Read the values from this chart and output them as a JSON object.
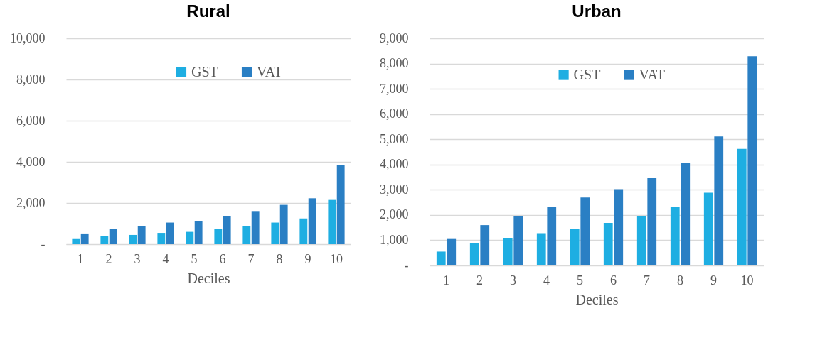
{
  "chart_data": [
    {
      "type": "bar",
      "title": "Rural",
      "xlabel": "Deciles",
      "categories": [
        "1",
        "2",
        "3",
        "4",
        "5",
        "6",
        "7",
        "8",
        "9",
        "10"
      ],
      "series": [
        {
          "name": "GST",
          "color": "#1eaee2",
          "values": [
            250,
            390,
            450,
            550,
            600,
            750,
            880,
            1050,
            1250,
            2150
          ]
        },
        {
          "name": "VAT",
          "color": "#2a7fc4",
          "values": [
            520,
            750,
            870,
            1050,
            1130,
            1370,
            1610,
            1910,
            2230,
            3850
          ]
        }
      ],
      "ylim": [
        0,
        10000
      ],
      "yticks": [
        {
          "value": 0,
          "label": "-"
        },
        {
          "value": 2000,
          "label": "2,000"
        },
        {
          "value": 4000,
          "label": "4,000"
        },
        {
          "value": 6000,
          "label": "6,000"
        },
        {
          "value": 8000,
          "label": "8,000"
        },
        {
          "value": 10000,
          "label": "10,000"
        }
      ],
      "grid": "y",
      "legend": "top"
    },
    {
      "type": "bar",
      "title": "Urban",
      "xlabel": "Deciles",
      "categories": [
        "1",
        "2",
        "3",
        "4",
        "5",
        "6",
        "7",
        "8",
        "9",
        "10"
      ],
      "series": [
        {
          "name": "GST",
          "color": "#1eaee2",
          "values": [
            550,
            880,
            1080,
            1280,
            1450,
            1690,
            1950,
            2330,
            2880,
            4620
          ]
        },
        {
          "name": "VAT",
          "color": "#2a7fc4",
          "values": [
            1050,
            1600,
            1970,
            2330,
            2690,
            3020,
            3460,
            4070,
            5110,
            8290
          ]
        }
      ],
      "ylim": [
        0,
        9000
      ],
      "yticks": [
        {
          "value": 0,
          "label": "-"
        },
        {
          "value": 1000,
          "label": "1,000"
        },
        {
          "value": 2000,
          "label": "2,000"
        },
        {
          "value": 3000,
          "label": "3,000"
        },
        {
          "value": 4000,
          "label": "4,000"
        },
        {
          "value": 5000,
          "label": "5,000"
        },
        {
          "value": 6000,
          "label": "6,000"
        },
        {
          "value": 7000,
          "label": "7,000"
        },
        {
          "value": 8000,
          "label": "8,000"
        },
        {
          "value": 9000,
          "label": "9,000"
        }
      ],
      "grid": "y",
      "legend": "top"
    }
  ]
}
